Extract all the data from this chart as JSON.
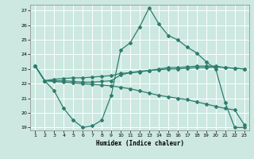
{
  "title": "",
  "xlabel": "Humidex (Indice chaleur)",
  "bg_color": "#cce8e0",
  "grid_color": "#ffffff",
  "line_color": "#2e7d6e",
  "xlim": [
    0.5,
    23.5
  ],
  "ylim": [
    18.8,
    27.4
  ],
  "xticks": [
    1,
    2,
    3,
    4,
    5,
    6,
    7,
    8,
    9,
    10,
    11,
    12,
    13,
    14,
    15,
    16,
    17,
    18,
    19,
    20,
    21,
    22,
    23
  ],
  "yticks": [
    19,
    20,
    21,
    22,
    23,
    24,
    25,
    26,
    27
  ],
  "line1_x": [
    1,
    2,
    3,
    4,
    5,
    6,
    7,
    8,
    9,
    10,
    11,
    12,
    13,
    14,
    15,
    16,
    17,
    18,
    19,
    20,
    21,
    22,
    23
  ],
  "line1_y": [
    23.2,
    22.2,
    22.2,
    22.2,
    22.15,
    22.1,
    22.1,
    22.15,
    22.2,
    22.6,
    22.75,
    22.85,
    22.9,
    22.95,
    23.0,
    23.0,
    23.05,
    23.1,
    23.1,
    23.15,
    23.1,
    23.05,
    23.0
  ],
  "line2_x": [
    1,
    2,
    3,
    4,
    5,
    6,
    7,
    8,
    9,
    10,
    11,
    12,
    13,
    14,
    15,
    16,
    17,
    18,
    19,
    20,
    21,
    22,
    23
  ],
  "line2_y": [
    23.2,
    22.2,
    21.5,
    20.3,
    19.5,
    19.0,
    19.1,
    19.5,
    21.2,
    24.3,
    24.8,
    25.9,
    27.2,
    26.1,
    25.3,
    25.0,
    24.5,
    24.1,
    23.5,
    23.0,
    20.7,
    19.0,
    19.0
  ],
  "line3_x": [
    1,
    2,
    3,
    4,
    5,
    6,
    7,
    8,
    9,
    10,
    11,
    12,
    13,
    14,
    15,
    16,
    17,
    18,
    19,
    20,
    21,
    22,
    23
  ],
  "line3_y": [
    23.2,
    22.2,
    22.3,
    22.35,
    22.4,
    22.4,
    22.45,
    22.5,
    22.55,
    22.7,
    22.75,
    22.8,
    22.9,
    23.0,
    23.1,
    23.1,
    23.15,
    23.2,
    23.2,
    23.2,
    23.1,
    23.05,
    23.0
  ],
  "line4_x": [
    1,
    2,
    3,
    4,
    5,
    6,
    7,
    8,
    9,
    10,
    11,
    12,
    13,
    14,
    15,
    16,
    17,
    18,
    19,
    20,
    21,
    22,
    23
  ],
  "line4_y": [
    23.2,
    22.2,
    22.15,
    22.1,
    22.05,
    22.0,
    21.95,
    21.9,
    21.85,
    21.75,
    21.65,
    21.5,
    21.35,
    21.2,
    21.1,
    21.0,
    20.9,
    20.75,
    20.6,
    20.45,
    20.3,
    20.2,
    19.2
  ]
}
